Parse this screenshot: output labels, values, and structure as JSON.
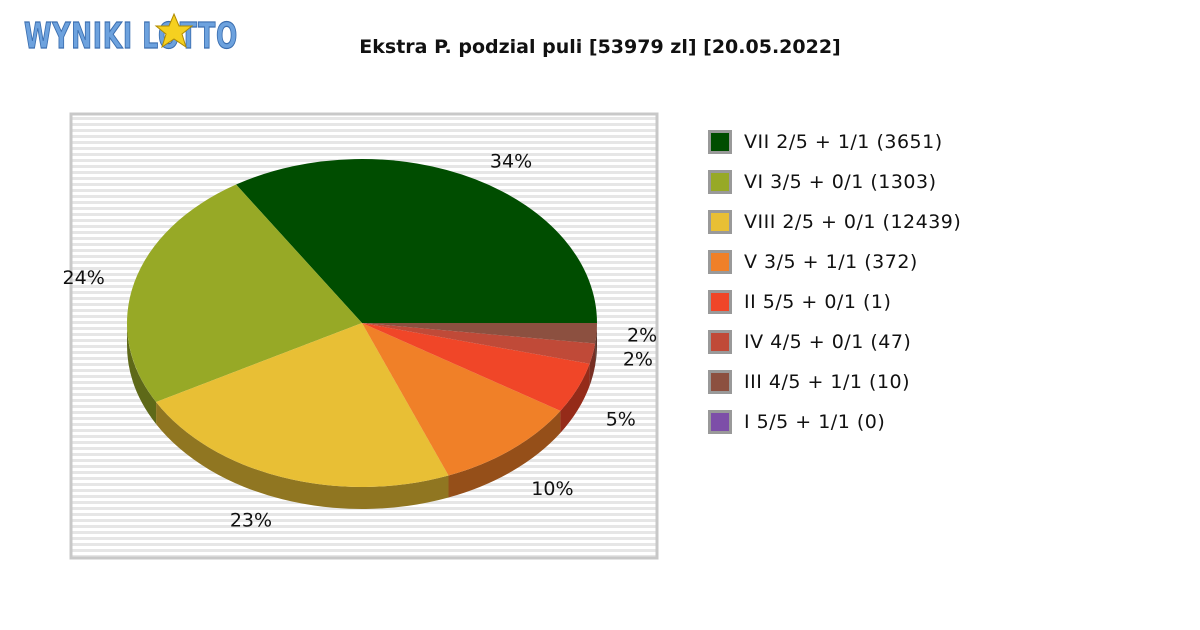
{
  "logo": {
    "text": "WYNIKI LOTTO"
  },
  "chart_data": {
    "type": "pie",
    "title": "Ekstra P. podzial puli [53979 zl] [20.05.2022]",
    "slices": [
      {
        "label": "VII 2/5 + 1/1 (3651)",
        "value": 34,
        "value_label": "34%",
        "color": "#004d00"
      },
      {
        "label": "VI 3/5 + 0/1 (1303)",
        "value": 24,
        "value_label": "24%",
        "color": "#97a926"
      },
      {
        "label": "VIII 2/5 + 0/1 (12439)",
        "value": 23,
        "value_label": "23%",
        "color": "#e8bf35"
      },
      {
        "label": "V 3/5 + 1/1 (372)",
        "value": 10,
        "value_label": "10%",
        "color": "#f08028"
      },
      {
        "label": "II 5/5 + 0/1 (1)",
        "value": 5,
        "value_label": "5%",
        "color": "#f04628"
      },
      {
        "label": "IV 4/5 + 0/1 (47)",
        "value": 2,
        "value_label": "2%",
        "color": "#c04a38"
      },
      {
        "label": "III 4/5 + 1/1 (10)",
        "value": 2,
        "value_label": "2%",
        "color": "#8c5040"
      },
      {
        "label": "I 5/5 + 1/1 (0)",
        "value": 0,
        "value_label": "",
        "color": "#7d4ea8"
      }
    ],
    "legend_position": "right",
    "style": "3d"
  }
}
